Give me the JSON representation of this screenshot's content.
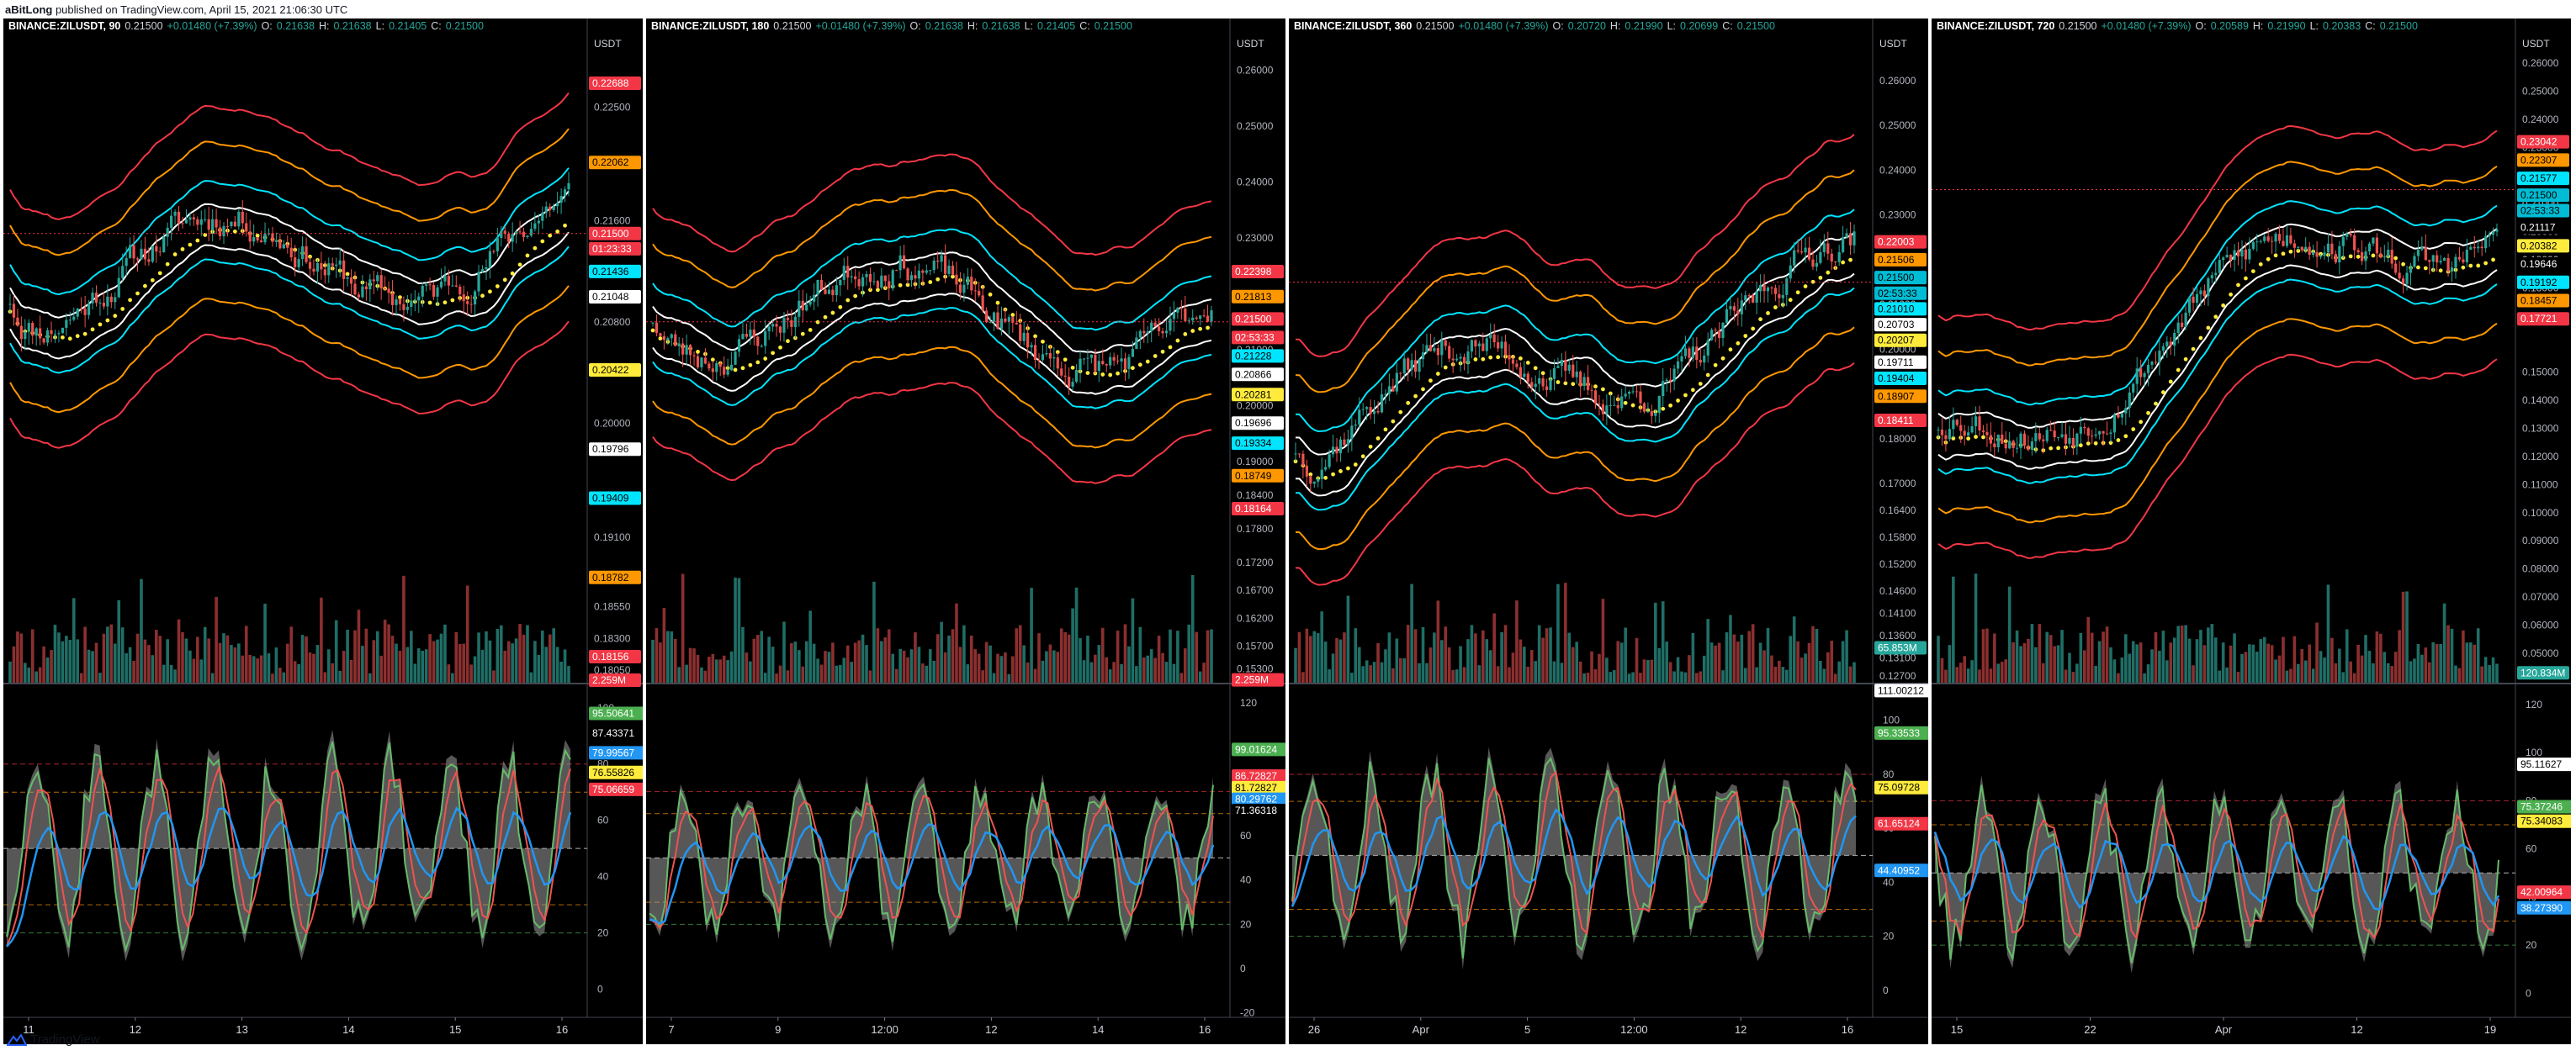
{
  "header": {
    "author": "aBitLong",
    "text": " published on TradingView.com, April 15, 2021 21:06:30 UTC"
  },
  "footer": {
    "brand": "TradingView"
  },
  "colors": {
    "bg": "#000000",
    "up": "#26a69a",
    "down": "#ef5350",
    "bb_inner": "#00e5ff",
    "bb_mid": "#ffffff",
    "bb_outer1": "#ff9800",
    "bb_outer2": "#f23645",
    "ema": "#ffeb3b"
  },
  "chart_data": [
    {
      "type": "candlestick+volume+oscillator",
      "symbol": "BINANCE:ZILUSDT, 90",
      "last": "0.21500",
      "change": "+0.01480 (+7.39%)",
      "ohlc": {
        "O": "0.21638",
        "H": "0.21638",
        "L": "0.21405",
        "C": "0.21500"
      },
      "currency": "USDT",
      "price_ticks": [
        "0.23000",
        "0.22500",
        "0.21600",
        "0.20800",
        "0.20000",
        "0.19100",
        "0.18550",
        "0.18300",
        "0.18050"
      ],
      "price_ylim": [
        0.1795,
        0.2308
      ],
      "x_ticks": [
        "11",
        "12",
        "13",
        "14",
        "15",
        "16"
      ],
      "price_badges": [
        {
          "text": "0.22688",
          "color": "#f23645",
          "fg": "#ffffff",
          "v": 0.22688
        },
        {
          "text": "0.22062",
          "color": "#ff9800",
          "fg": "#000000",
          "v": 0.22062
        },
        {
          "text": "0.21500",
          "color": "#f23645",
          "fg": "#ffffff",
          "v": 0.215
        },
        {
          "text": "01:23:33",
          "color": "#f23645",
          "fg": "#ffffff",
          "v": 0.2138
        },
        {
          "text": "0.21436",
          "color": "#00e5ff",
          "fg": "#000000",
          "v": 0.212
        },
        {
          "text": "0.21048",
          "color": "#ffffff",
          "fg": "#000000",
          "v": 0.21
        },
        {
          "text": "0.20422",
          "color": "#ffeb3b",
          "fg": "#000000",
          "v": 0.20422
        },
        {
          "text": "0.19796",
          "color": "#ffffff",
          "fg": "#000000",
          "v": 0.19796
        },
        {
          "text": "0.19409",
          "color": "#00e5ff",
          "fg": "#000000",
          "v": 0.19409
        },
        {
          "text": "0.18782",
          "color": "#ff9800",
          "fg": "#000000",
          "v": 0.18782
        },
        {
          "text": "0.18156",
          "color": "#f23645",
          "fg": "#ffffff",
          "v": 0.18156
        },
        {
          "text": "2.259M",
          "color": "#f23645",
          "fg": "#ffffff",
          "v": 0.1797
        }
      ],
      "osc_ticks": [
        "100",
        "80",
        "60",
        "40",
        "20",
        "0"
      ],
      "osc_ylim": [
        -10,
        108
      ],
      "osc_badges": [
        {
          "text": "95.50641",
          "color": "#4caf50",
          "fg": "#ffffff",
          "v": 98
        },
        {
          "text": "87.43371",
          "color": "#000000",
          "fg": "#ffffff",
          "v": 91
        },
        {
          "text": "79.99567",
          "color": "#2196f3",
          "fg": "#ffffff",
          "v": 84
        },
        {
          "text": "76.55826",
          "color": "#ffeb3b",
          "fg": "#000000",
          "v": 77
        },
        {
          "text": "75.06659",
          "color": "#f23645",
          "fg": "#ffffff",
          "v": 71
        }
      ],
      "price_start": 0.211,
      "price_end": 0.215,
      "seed": 11
    },
    {
      "type": "candlestick+volume+oscillator",
      "symbol": "BINANCE:ZILUSDT, 180",
      "last": "0.21500",
      "change": "+0.01480 (+7.39%)",
      "ohlc": {
        "O": "0.21638",
        "H": "0.21638",
        "L": "0.21405",
        "C": "0.21500"
      },
      "currency": "USDT",
      "price_ticks": [
        "0.26000",
        "0.25000",
        "0.24000",
        "0.23000",
        "0.22000",
        "0.21000",
        "0.20000",
        "0.19000",
        "0.18400",
        "0.17800",
        "0.17200",
        "0.16700",
        "0.16200",
        "0.15700",
        "0.15300"
      ],
      "price_ylim": [
        0.1505,
        0.2665
      ],
      "x_ticks": [
        "7",
        "9",
        "12:00",
        "12",
        "14",
        "16"
      ],
      "price_badges": [
        {
          "text": "0.22398",
          "color": "#f23645",
          "fg": "#ffffff",
          "v": 0.22398
        },
        {
          "text": "0.21813",
          "color": "#ff9800",
          "fg": "#000000",
          "v": 0.2195
        },
        {
          "text": "0.21500",
          "color": "#f23645",
          "fg": "#ffffff",
          "v": 0.2155
        },
        {
          "text": "02:53:33",
          "color": "#f23645",
          "fg": "#ffffff",
          "v": 0.2122
        },
        {
          "text": "0.21228",
          "color": "#00e5ff",
          "fg": "#000000",
          "v": 0.2089
        },
        {
          "text": "0.20866",
          "color": "#ffffff",
          "fg": "#000000",
          "v": 0.2056
        },
        {
          "text": "0.20281",
          "color": "#ffeb3b",
          "fg": "#000000",
          "v": 0.202
        },
        {
          "text": "0.19696",
          "color": "#ffffff",
          "fg": "#000000",
          "v": 0.1969
        },
        {
          "text": "0.19334",
          "color": "#00e5ff",
          "fg": "#000000",
          "v": 0.1933
        },
        {
          "text": "0.18749",
          "color": "#ff9800",
          "fg": "#000000",
          "v": 0.1875
        },
        {
          "text": "0.18164",
          "color": "#f23645",
          "fg": "#ffffff",
          "v": 0.1816
        },
        {
          "text": "2.259M",
          "color": "#f23645",
          "fg": "#ffffff",
          "v": 0.151
        }
      ],
      "osc_ticks": [
        "120",
        "100",
        "80",
        "60",
        "40",
        "20",
        "0",
        "-20"
      ],
      "osc_ylim": [
        -22,
        128
      ],
      "osc_badges": [
        {
          "text": "99.01624",
          "color": "#4caf50",
          "fg": "#ffffff",
          "v": 99
        },
        {
          "text": "86.72827",
          "color": "#f23645",
          "fg": "#ffffff",
          "v": 87
        },
        {
          "text": "81.72827",
          "color": "#ffeb3b",
          "fg": "#000000",
          "v": 81.7
        },
        {
          "text": "80.29762",
          "color": "#2196f3",
          "fg": "#ffffff",
          "v": 76.5
        },
        {
          "text": "71.36318",
          "color": "#000000",
          "fg": "#ffffff",
          "v": 71.4
        }
      ],
      "price_start": 0.218,
      "price_end": 0.215,
      "seed": 23
    },
    {
      "type": "candlestick+volume+oscillator",
      "symbol": "BINANCE:ZILUSDT, 360",
      "last": "0.21500",
      "change": "+0.01480 (+7.39%)",
      "ohlc": {
        "O": "0.20720",
        "H": "0.21990",
        "L": "0.20699",
        "C": "0.21500"
      },
      "currency": "USDT",
      "price_ticks": [
        "0.26000",
        "0.25000",
        "0.24000",
        "0.23000",
        "0.22000",
        "0.21000",
        "0.20000",
        "0.19000",
        "0.18000",
        "0.17000",
        "0.16400",
        "0.15800",
        "0.15200",
        "0.14600",
        "0.14100",
        "0.13600",
        "0.13100",
        "0.12700"
      ],
      "price_ylim": [
        0.1255,
        0.2705
      ],
      "x_ticks": [
        "26",
        "Apr",
        "5",
        "12:00",
        "12",
        "16"
      ],
      "price_badges": [
        {
          "text": "0.22003",
          "color": "#f23645",
          "fg": "#ffffff",
          "v": 0.224
        },
        {
          "text": "0.21506",
          "color": "#ff9800",
          "fg": "#000000",
          "v": 0.22
        },
        {
          "text": "0.21500",
          "color": "#00bcd4",
          "fg": "#000000",
          "v": 0.216
        },
        {
          "text": "02:53:33",
          "color": "#00bcd4",
          "fg": "#000000",
          "v": 0.2125
        },
        {
          "text": "0.21010",
          "color": "#00e5ff",
          "fg": "#000000",
          "v": 0.209
        },
        {
          "text": "0.20703",
          "color": "#ffffff",
          "fg": "#000000",
          "v": 0.2055
        },
        {
          "text": "0.20207",
          "color": "#ffeb3b",
          "fg": "#000000",
          "v": 0.202
        },
        {
          "text": "0.19711",
          "color": "#ffffff",
          "fg": "#000000",
          "v": 0.1971
        },
        {
          "text": "0.19404",
          "color": "#00e5ff",
          "fg": "#000000",
          "v": 0.1935
        },
        {
          "text": "0.18907",
          "color": "#ff9800",
          "fg": "#000000",
          "v": 0.1895
        },
        {
          "text": "0.18411",
          "color": "#f23645",
          "fg": "#ffffff",
          "v": 0.1841
        },
        {
          "text": "65.853M",
          "color": "#26a69a",
          "fg": "#ffffff",
          "v": 0.1333
        }
      ],
      "osc_ticks": [
        "100",
        "80",
        "60",
        "40",
        "20",
        "0"
      ],
      "osc_ylim": [
        -10,
        113
      ],
      "osc_badges": [
        {
          "text": "111.00212",
          "color": "#ffffff",
          "fg": "#000000",
          "v": 111
        },
        {
          "text": "95.33533",
          "color": "#4caf50",
          "fg": "#ffffff",
          "v": 95.3
        },
        {
          "text": "75.09728",
          "color": "#ffeb3b",
          "fg": "#000000",
          "v": 75.1
        },
        {
          "text": "61.65124",
          "color": "#f23645",
          "fg": "#ffffff",
          "v": 61.7
        },
        {
          "text": "44.40952",
          "color": "#2196f3",
          "fg": "#ffffff",
          "v": 44.4
        }
      ],
      "price_start": 0.18,
      "price_end": 0.215,
      "seed": 37
    },
    {
      "type": "candlestick+volume+oscillator",
      "symbol": "BINANCE:ZILUSDT, 720",
      "last": "0.21500",
      "change": "+0.01480 (+7.39%)",
      "ohlc": {
        "O": "0.20589",
        "H": "0.21990",
        "L": "0.20383",
        "C": "0.21500"
      },
      "currency": "USDT",
      "price_ticks": [
        "0.26000",
        "0.25000",
        "0.24000",
        "0.23000",
        "0.22000",
        "0.21000",
        "0.20000",
        "0.19000",
        "0.18000",
        "0.17000",
        "0.15000",
        "0.14000",
        "0.13000",
        "0.12000",
        "0.11000",
        "0.10000",
        "0.09000",
        "0.08000",
        "0.07000",
        "0.06000",
        "0.05000"
      ],
      "price_ylim": [
        0.0395,
        0.2705
      ],
      "x_ticks": [
        "15",
        "22",
        "Apr",
        "12",
        "19"
      ],
      "price_badges": [
        {
          "text": "0.23042",
          "color": "#f23645",
          "fg": "#ffffff",
          "v": 0.232
        },
        {
          "text": "0.22307",
          "color": "#ff9800",
          "fg": "#000000",
          "v": 0.2255
        },
        {
          "text": "0.21577",
          "color": "#00e5ff",
          "fg": "#000000",
          "v": 0.219
        },
        {
          "text": "0.21500",
          "color": "#00bcd4",
          "fg": "#000000",
          "v": 0.213
        },
        {
          "text": "02:53:33",
          "color": "#00bcd4",
          "fg": "#000000",
          "v": 0.2075
        },
        {
          "text": "0.21117",
          "color": "#000000",
          "fg": "#ffffff",
          "v": 0.2015
        },
        {
          "text": "0.20382",
          "color": "#ffeb3b",
          "fg": "#000000",
          "v": 0.195
        },
        {
          "text": "0.19646",
          "color": "#000000",
          "fg": "#ffffff",
          "v": 0.1885
        },
        {
          "text": "0.19192",
          "color": "#00e5ff",
          "fg": "#000000",
          "v": 0.182
        },
        {
          "text": "0.18457",
          "color": "#ff9800",
          "fg": "#000000",
          "v": 0.1755
        },
        {
          "text": "0.17721",
          "color": "#f23645",
          "fg": "#ffffff",
          "v": 0.169
        },
        {
          "text": "120.834M",
          "color": "#26a69a",
          "fg": "#ffffff",
          "v": 0.043
        }
      ],
      "osc_ticks": [
        "120",
        "100",
        "80",
        "60",
        "40",
        "20",
        "0"
      ],
      "osc_ylim": [
        -10,
        128
      ],
      "osc_badges": [
        {
          "text": "95.11627",
          "color": "#ffffff",
          "fg": "#000000",
          "v": 95.1
        },
        {
          "text": "75.37246",
          "color": "#4caf50",
          "fg": "#ffffff",
          "v": 77.5
        },
        {
          "text": "75.34083",
          "color": "#ffeb3b",
          "fg": "#000000",
          "v": 71.5
        },
        {
          "text": "42.00964",
          "color": "#f23645",
          "fg": "#ffffff",
          "v": 42.0
        },
        {
          "text": "38.27390",
          "color": "#2196f3",
          "fg": "#ffffff",
          "v": 35.5
        }
      ],
      "price_start": 0.13,
      "price_end": 0.215,
      "seed": 53
    }
  ]
}
